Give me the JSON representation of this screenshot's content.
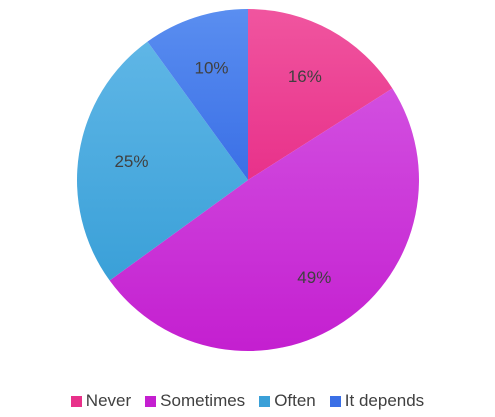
{
  "chart_data": {
    "type": "pie",
    "title": "",
    "slices": [
      {
        "label": "Never",
        "value": 16,
        "display": "16%",
        "color": "#e8318a",
        "color_light": "#f0559f"
      },
      {
        "label": "Sometimes",
        "value": 49,
        "display": "49%",
        "color": "#c41fd0",
        "color_light": "#d24fe0"
      },
      {
        "label": "Often",
        "value": 25,
        "display": "25%",
        "color": "#3aa0d8",
        "color_light": "#5fb6e6"
      },
      {
        "label": "It depends",
        "value": 10,
        "display": "10%",
        "color": "#3a6fe6",
        "color_light": "#5a8ef0"
      }
    ],
    "legend_position": "bottom"
  }
}
